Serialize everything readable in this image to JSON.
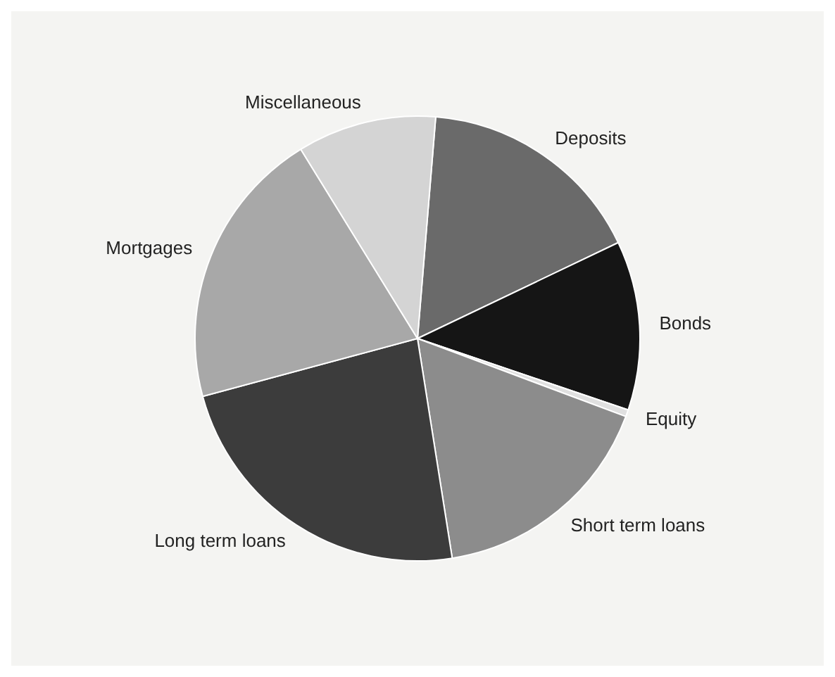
{
  "chart_data": {
    "type": "pie",
    "categories": [
      "Deposits",
      "Bonds",
      "Equity",
      "Short term loans",
      "Long term loans",
      "Mortgages",
      "Miscellaneous"
    ],
    "values": [
      16.6,
      12.3,
      0.5,
      16.8,
      23.3,
      20.4,
      10.1
    ],
    "colors": [
      "#6a6a6a",
      "#151515",
      "#e0e0e0",
      "#8c8c8c",
      "#3c3c3c",
      "#a8a8a8",
      "#d4d4d4"
    ],
    "legend": false
  }
}
